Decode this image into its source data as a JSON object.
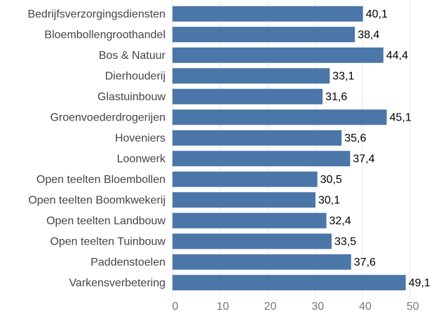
{
  "chart_data": {
    "type": "bar",
    "orientation": "horizontal",
    "categories": [
      "Bedrijfsverzorgingsdiensten",
      "Bloembollengroothandel",
      "Bos & Natuur",
      "Dierhouderij",
      "Glastuinbouw",
      "Groenvoederdrogerijen",
      "Hoveniers",
      "Loonwerk",
      "Open teelten Bloembollen",
      "Open teelten Boomkwekerij",
      "Open teelten Landbouw",
      "Open teelten Tuinbouw",
      "Paddenstoelen",
      "Varkensverbetering"
    ],
    "values": [
      40.1,
      38.4,
      44.4,
      33.1,
      31.6,
      45.1,
      35.6,
      37.4,
      30.5,
      30.1,
      32.4,
      33.5,
      37.6,
      49.1
    ],
    "value_labels": [
      "40,1",
      "38,4",
      "44,4",
      "33,1",
      "31,6",
      "45,1",
      "35,6",
      "37,4",
      "30,5",
      "30,1",
      "32,4",
      "33,5",
      "37,6",
      "49,1"
    ],
    "color": "#4a76a8",
    "xlim": [
      0,
      58
    ],
    "xticks": [
      0,
      10,
      20,
      30,
      40,
      50
    ],
    "grid": true
  }
}
